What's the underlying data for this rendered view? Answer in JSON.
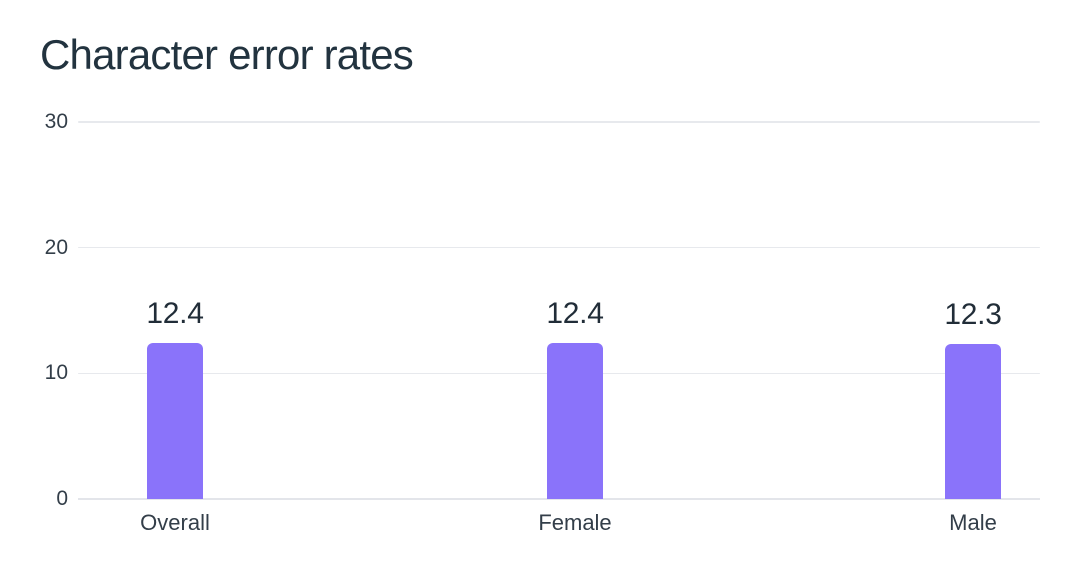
{
  "page": {
    "background": "#ffffff"
  },
  "chart_data": {
    "type": "bar",
    "title": "Character error rates",
    "categories": [
      "Overall",
      "Female",
      "Male"
    ],
    "values": [
      12.4,
      12.4,
      12.3
    ],
    "value_labels": [
      "12.4",
      "12.4",
      "12.3"
    ],
    "xlabel": "",
    "ylabel": "",
    "ylim": [
      0,
      30
    ],
    "yticks": [
      0,
      10,
      20,
      30
    ],
    "ytick_labels": [
      "0",
      "10",
      "20",
      "30"
    ],
    "grid": true,
    "legend": false
  },
  "colors": {
    "bar": "#8a73fa",
    "gridline": "#e7e9ed",
    "axis_line": "#e3e5ea",
    "title_text": "#22333f",
    "value_text": "#212d38",
    "tick_text": "#333e49"
  }
}
